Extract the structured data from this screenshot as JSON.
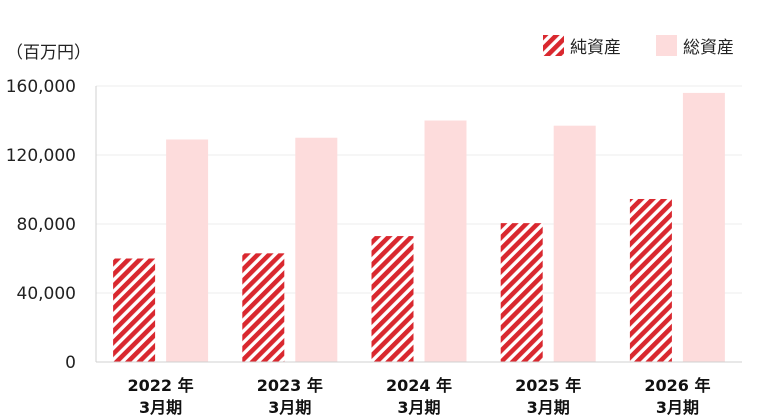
{
  "chart_data": {
    "type": "bar",
    "unit_label": "（百万円）",
    "categories": [
      {
        "year": "2022 年",
        "period": "3月期"
      },
      {
        "year": "2023 年",
        "period": "3月期"
      },
      {
        "year": "2024 年",
        "period": "3月期"
      },
      {
        "year": "2025 年",
        "period": "3月期"
      },
      {
        "year": "2026 年",
        "period": "3月期"
      }
    ],
    "series": [
      {
        "name": "純資産",
        "values": [
          60000,
          63000,
          73000,
          80500,
          94500
        ],
        "color": "#d9282f",
        "pattern": "diagonal-hatch"
      },
      {
        "name": "総資産",
        "values": [
          129000,
          130000,
          140000,
          137000,
          156000
        ],
        "color": "#fddcdc",
        "pattern": "solid"
      }
    ],
    "ylim": [
      0,
      160000
    ],
    "yticks": [
      "0",
      "40,000",
      "80,000",
      "120,000",
      "160,000"
    ],
    "ytick_values": [
      0,
      40000,
      80000,
      120000,
      160000
    ],
    "grid": true,
    "legend_position": "top-right"
  }
}
